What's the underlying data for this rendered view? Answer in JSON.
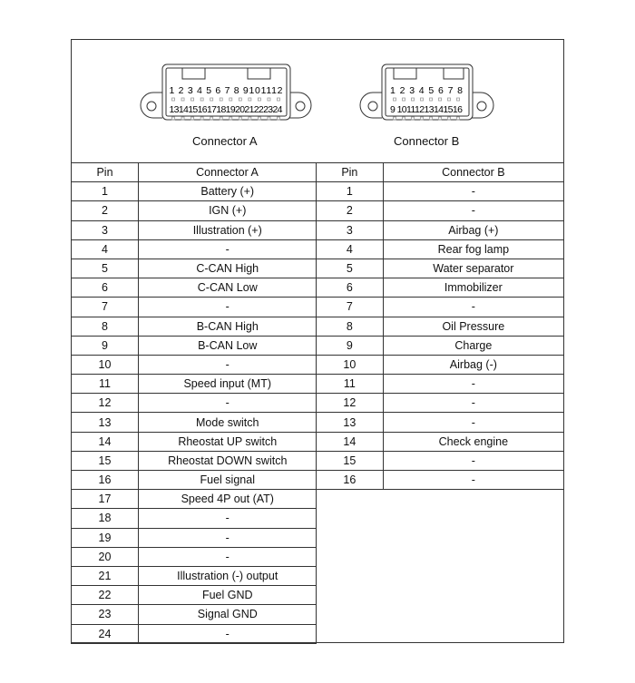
{
  "diagram": {
    "connector_a": {
      "caption": "Connector A",
      "top_pins": "1 2 3 4 5 6 7 8 9101112",
      "bottom_pins": "131415161718192021222324"
    },
    "connector_b": {
      "caption": "Connector B",
      "top_pins": "1 2 3 4 5 6 7 8",
      "bottom_pins": "9 10111213141516"
    }
  },
  "table_a": {
    "headers": [
      "Pin",
      "Connector A"
    ],
    "rows": [
      [
        "1",
        "Battery (+)"
      ],
      [
        "2",
        "IGN (+)"
      ],
      [
        "3",
        "Illustration (+)"
      ],
      [
        "4",
        "-"
      ],
      [
        "5",
        "C-CAN High"
      ],
      [
        "6",
        "C-CAN Low"
      ],
      [
        "7",
        "-"
      ],
      [
        "8",
        "B-CAN High"
      ],
      [
        "9",
        "B-CAN Low"
      ],
      [
        "10",
        "-"
      ],
      [
        "11",
        "Speed input (MT)"
      ],
      [
        "12",
        "-"
      ],
      [
        "13",
        "Mode switch"
      ],
      [
        "14",
        "Rheostat UP switch"
      ],
      [
        "15",
        "Rheostat DOWN switch"
      ],
      [
        "16",
        "Fuel signal"
      ],
      [
        "17",
        "Speed 4P out (AT)"
      ],
      [
        "18",
        "-"
      ],
      [
        "19",
        "-"
      ],
      [
        "20",
        "-"
      ],
      [
        "21",
        "Illustration (-) output"
      ],
      [
        "22",
        "Fuel GND"
      ],
      [
        "23",
        "Signal GND"
      ],
      [
        "24",
        "-"
      ]
    ]
  },
  "table_b": {
    "headers": [
      "Pin",
      "Connector B"
    ],
    "rows": [
      [
        "1",
        "-"
      ],
      [
        "2",
        "-"
      ],
      [
        "3",
        "Airbag (+)"
      ],
      [
        "4",
        "Rear fog lamp"
      ],
      [
        "5",
        "Water separator"
      ],
      [
        "6",
        "Immobilizer"
      ],
      [
        "7",
        "-"
      ],
      [
        "8",
        "Oil Pressure"
      ],
      [
        "9",
        "Charge"
      ],
      [
        "10",
        "Airbag (-)"
      ],
      [
        "11",
        "-"
      ],
      [
        "12",
        "-"
      ],
      [
        "13",
        "-"
      ],
      [
        "14",
        "Check engine"
      ],
      [
        "15",
        "-"
      ],
      [
        "16",
        "-"
      ]
    ]
  }
}
